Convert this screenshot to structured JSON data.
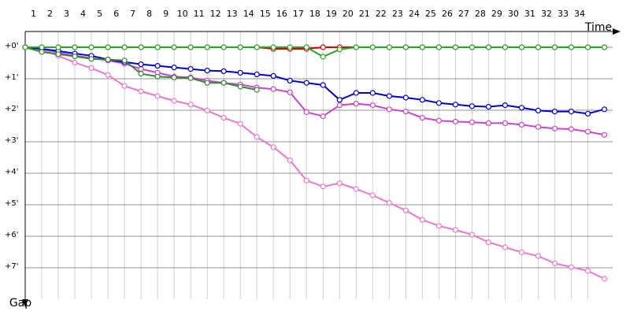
{
  "chart_data": {
    "type": "line",
    "x_label": "Time",
    "y_label": "Gap",
    "x": [
      0,
      1,
      2,
      3,
      4,
      5,
      6,
      7,
      8,
      9,
      10,
      11,
      12,
      13,
      14,
      15,
      16,
      17,
      18,
      19,
      20,
      21,
      22,
      23,
      24,
      25,
      26,
      27,
      28,
      29,
      30,
      31,
      32,
      33,
      34,
      35
    ],
    "xlim": [
      0,
      35.5
    ],
    "xticks": [
      1,
      2,
      3,
      4,
      5,
      6,
      7,
      8,
      9,
      10,
      11,
      12,
      13,
      14,
      15,
      16,
      17,
      18,
      19,
      20,
      21,
      22,
      23,
      24,
      25,
      26,
      27,
      28,
      29,
      30,
      31,
      32,
      33,
      34
    ],
    "ylim": [
      -0.5,
      8
    ],
    "yticks": [
      {
        "value": 0,
        "label": "+0'"
      },
      {
        "value": 1,
        "label": "+1'"
      },
      {
        "value": 2,
        "label": "+2'"
      },
      {
        "value": 3,
        "label": "+3'"
      },
      {
        "value": 4,
        "label": "+4'"
      },
      {
        "value": 5,
        "label": "+5'"
      },
      {
        "value": 6,
        "label": "+6'"
      },
      {
        "value": 7,
        "label": "+7'"
      }
    ],
    "grid": true,
    "series": [
      {
        "color": "#ee77cc",
        "values": [
          0,
          0.07,
          0.27,
          0.49,
          0.66,
          0.88,
          1.23,
          1.4,
          1.55,
          1.7,
          1.82,
          2.01,
          2.24,
          2.43,
          2.85,
          3.17,
          3.59,
          4.23,
          4.42,
          4.32,
          4.5,
          4.7,
          4.94,
          5.18,
          5.48,
          5.67,
          5.8,
          5.95,
          6.19,
          6.35,
          6.51,
          6.63,
          6.86,
          6.98,
          7.1,
          7.35
        ]
      },
      {
        "color": "#cc44cc",
        "values": [
          0,
          0.05,
          0.17,
          0.27,
          0.34,
          0.42,
          0.52,
          0.69,
          0.81,
          0.93,
          0.96,
          1.06,
          1.13,
          1.18,
          1.28,
          1.33,
          1.43,
          2.06,
          2.19,
          1.84,
          1.79,
          1.84,
          1.97,
          2.04,
          2.24,
          2.33,
          2.36,
          2.38,
          2.41,
          2.41,
          2.46,
          2.53,
          2.58,
          2.6,
          2.68,
          2.78
        ]
      },
      {
        "color": "#0000cc",
        "values": [
          0,
          0.05,
          0.12,
          0.2,
          0.27,
          0.39,
          0.47,
          0.54,
          0.59,
          0.64,
          0.69,
          0.74,
          0.76,
          0.81,
          0.86,
          0.91,
          1.06,
          1.13,
          1.2,
          1.67,
          1.45,
          1.45,
          1.55,
          1.6,
          1.67,
          1.77,
          1.82,
          1.87,
          1.89,
          1.84,
          1.92,
          2.01,
          2.04,
          2.04,
          2.11,
          1.97
        ]
      },
      {
        "color": "#338833",
        "values": [
          0,
          0.15,
          0.22,
          0.29,
          0.37,
          0.39,
          0.42,
          0.84,
          0.93,
          0.96,
          0.98,
          1.13,
          1.13,
          1.25,
          1.35,
          null,
          null,
          null,
          null,
          null,
          null,
          null,
          null,
          null,
          null,
          null,
          null,
          null,
          null,
          null,
          null,
          null,
          null,
          null,
          null,
          null
        ]
      },
      {
        "color": "#e00000",
        "values": [
          0,
          0,
          0,
          0,
          0,
          0,
          0,
          0,
          0,
          0,
          0,
          0,
          0,
          0,
          0,
          0.05,
          0.05,
          0.05,
          0,
          0,
          0,
          0,
          0,
          0,
          0,
          0,
          0,
          0,
          0,
          0,
          0,
          0,
          0,
          0,
          0,
          0
        ]
      },
      {
        "color": "#22aa22",
        "values": [
          0,
          0,
          0,
          0,
          0,
          0,
          0,
          0,
          0,
          0,
          0,
          0,
          0,
          0,
          0,
          0,
          0,
          0,
          0.3,
          0.07,
          0,
          0,
          0,
          0,
          0,
          0,
          0,
          0,
          0,
          0,
          0,
          0,
          0,
          0,
          0,
          0
        ]
      }
    ]
  }
}
